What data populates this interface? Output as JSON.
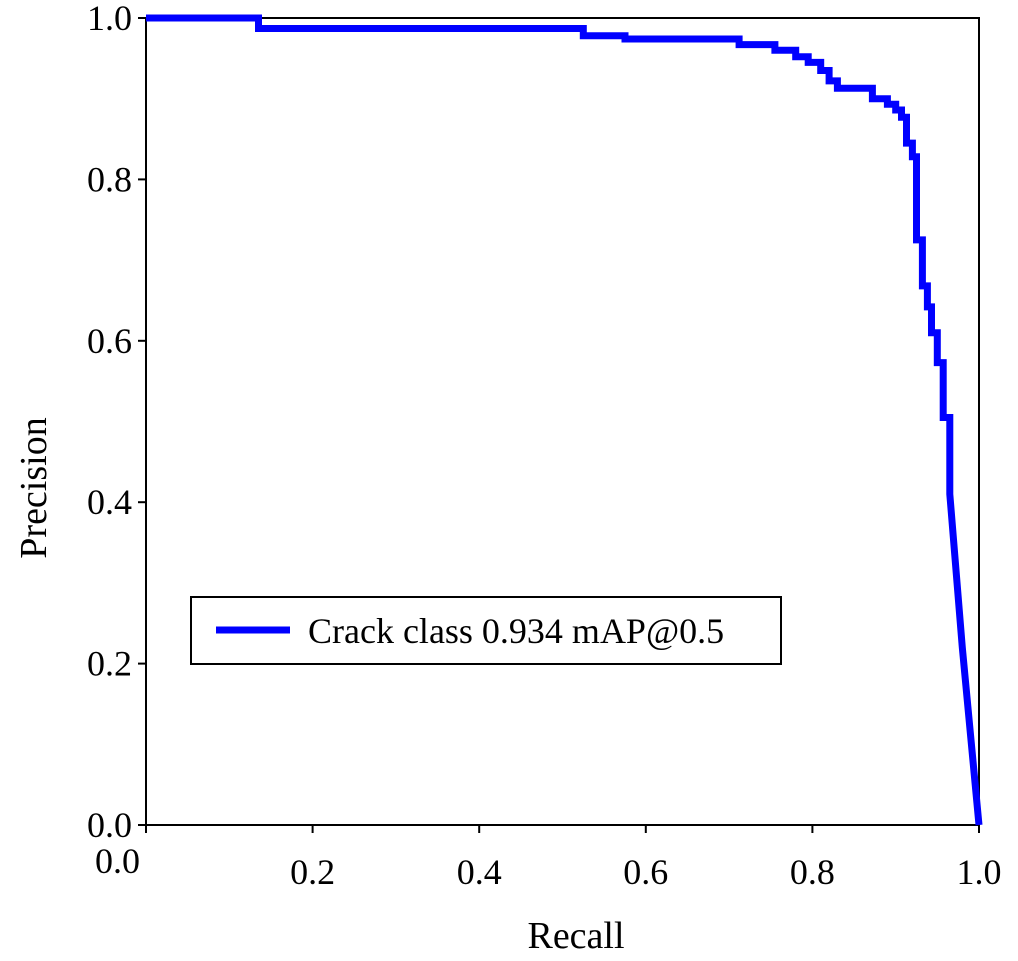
{
  "chart_data": {
    "type": "line",
    "title": "",
    "xlabel": "Recall",
    "ylabel": "Precision",
    "xlim": [
      0,
      1
    ],
    "ylim": [
      0,
      1
    ],
    "xticks": [
      "0.0",
      "0.2",
      "0.4",
      "0.6",
      "0.8",
      "1.0"
    ],
    "yticks": [
      "0.0",
      "0.2",
      "0.4",
      "0.6",
      "0.8",
      "1.0"
    ],
    "grid": false,
    "legend_position": "lower-left",
    "series": [
      {
        "name": "Crack class 0.934 mAP@0.5",
        "color": "#0000ff",
        "points": [
          [
            0.0,
            1.0
          ],
          [
            0.135,
            1.0
          ],
          [
            0.135,
            0.987
          ],
          [
            0.525,
            0.987
          ],
          [
            0.525,
            0.978
          ],
          [
            0.575,
            0.978
          ],
          [
            0.575,
            0.974
          ],
          [
            0.712,
            0.974
          ],
          [
            0.712,
            0.967
          ],
          [
            0.755,
            0.967
          ],
          [
            0.755,
            0.96
          ],
          [
            0.78,
            0.96
          ],
          [
            0.78,
            0.952
          ],
          [
            0.795,
            0.952
          ],
          [
            0.795,
            0.945
          ],
          [
            0.81,
            0.945
          ],
          [
            0.81,
            0.935
          ],
          [
            0.82,
            0.935
          ],
          [
            0.82,
            0.922
          ],
          [
            0.83,
            0.922
          ],
          [
            0.83,
            0.913
          ],
          [
            0.872,
            0.913
          ],
          [
            0.872,
            0.9
          ],
          [
            0.89,
            0.9
          ],
          [
            0.89,
            0.893
          ],
          [
            0.9,
            0.893
          ],
          [
            0.9,
            0.886
          ],
          [
            0.907,
            0.886
          ],
          [
            0.907,
            0.877
          ],
          [
            0.913,
            0.877
          ],
          [
            0.913,
            0.845
          ],
          [
            0.92,
            0.845
          ],
          [
            0.92,
            0.828
          ],
          [
            0.925,
            0.828
          ],
          [
            0.925,
            0.725
          ],
          [
            0.932,
            0.725
          ],
          [
            0.932,
            0.668
          ],
          [
            0.938,
            0.668
          ],
          [
            0.938,
            0.642
          ],
          [
            0.943,
            0.642
          ],
          [
            0.943,
            0.61
          ],
          [
            0.95,
            0.61
          ],
          [
            0.95,
            0.573
          ],
          [
            0.957,
            0.573
          ],
          [
            0.957,
            0.505
          ],
          [
            0.965,
            0.505
          ],
          [
            0.965,
            0.41
          ],
          [
            0.98,
            0.22
          ],
          [
            1.0,
            0.0
          ]
        ]
      }
    ]
  }
}
